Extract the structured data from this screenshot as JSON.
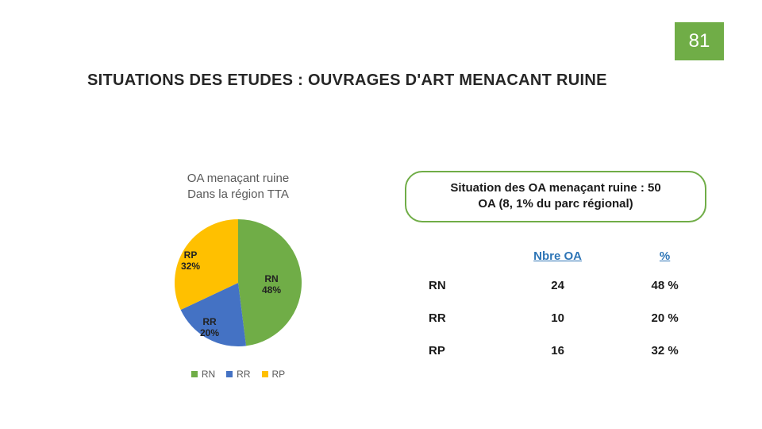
{
  "page_number": "81",
  "title": "SITUATIONS DES ETUDES : OUVRAGES D'ART MENACANT RUINE",
  "chart": {
    "type": "pie",
    "title_line1": "OA menaçant ruine",
    "title_line2": "Dans la région TTA",
    "slices": [
      {
        "key": "RN",
        "label": "RN",
        "pct": 48,
        "pct_label": "48%",
        "color": "#70ad47"
      },
      {
        "key": "RR",
        "label": "RR",
        "pct": 20,
        "pct_label": "20%",
        "color": "#4472c4"
      },
      {
        "key": "RP",
        "label": "RP",
        "pct": 32,
        "pct_label": "32%",
        "color": "#ffc000"
      }
    ],
    "legend_prefix": "■",
    "background_color": "#ffffff"
  },
  "info_bubble": {
    "line1": "Situation des OA menaçant ruine : 50",
    "line2": "OA  (8, 1% du parc régional)",
    "border_color": "#70ad47"
  },
  "table": {
    "headers": {
      "col2": "Nbre OA",
      "col3": "%"
    },
    "rows": [
      {
        "label": "RN",
        "count": "24",
        "pct": "48 %"
      },
      {
        "label": "RR",
        "count": "10",
        "pct": "20 %"
      },
      {
        "label": "RP",
        "count": "16",
        "pct": "32 %"
      }
    ],
    "header_color": "#2e75b6"
  }
}
